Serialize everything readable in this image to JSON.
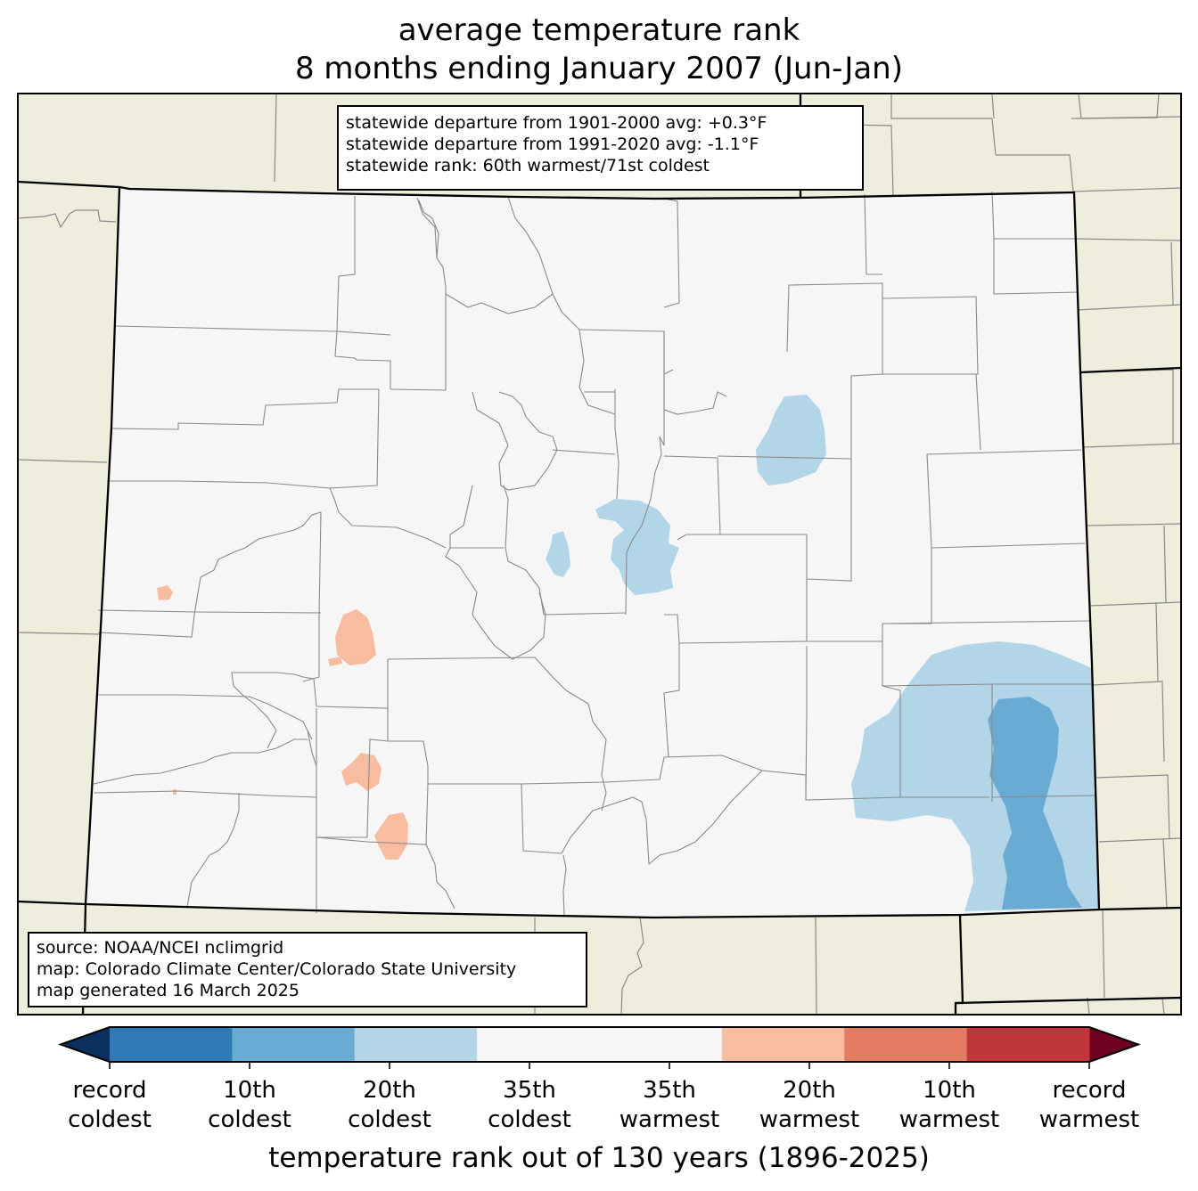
{
  "title": {
    "line1": "average temperature rank",
    "line2": "8 months ending January 2007 (Jun-Jan)"
  },
  "stats": {
    "line1": "statewide departure from 1901-2000 avg: +0.3°F",
    "line2": "statewide departure from 1991-2020 avg: -1.1°F",
    "line3": "statewide rank: 60th warmest/71st coldest"
  },
  "source": {
    "line1": "source: NOAA/NCEI nclimgrid",
    "line2": "map: Colorado Climate Center/Colorado State University",
    "line3": "map generated 16 March 2025"
  },
  "colorbar": {
    "label": "temperature rank out of 130 years (1896-2025)",
    "segments": [
      {
        "color": "#2f79b5"
      },
      {
        "color": "#6aabd3"
      },
      {
        "color": "#b3d5e8"
      },
      {
        "color": "#f6f6f6"
      },
      {
        "color": "#f6f6f6"
      },
      {
        "color": "#f8bda1"
      },
      {
        "color": "#e37c63"
      },
      {
        "color": "#c0363a"
      }
    ],
    "under_color": "#0b2f5e",
    "over_color": "#6e0122",
    "ticks": [
      {
        "line1": "record",
        "line2": "coldest"
      },
      {
        "line1": "10th",
        "line2": "coldest"
      },
      {
        "line1": "20th",
        "line2": "coldest"
      },
      {
        "line1": "35th",
        "line2": "coldest"
      },
      {
        "line1": "35th",
        "line2": "warmest"
      },
      {
        "line1": "20th",
        "line2": "warmest"
      },
      {
        "line1": "10th",
        "line2": "warmest"
      },
      {
        "line1": "record",
        "line2": "warmest"
      }
    ]
  },
  "colors": {
    "land": "#efeedd",
    "state_fill": "#f6f6f6",
    "county_line": "#8a8a8a",
    "state_line": "#000000"
  }
}
